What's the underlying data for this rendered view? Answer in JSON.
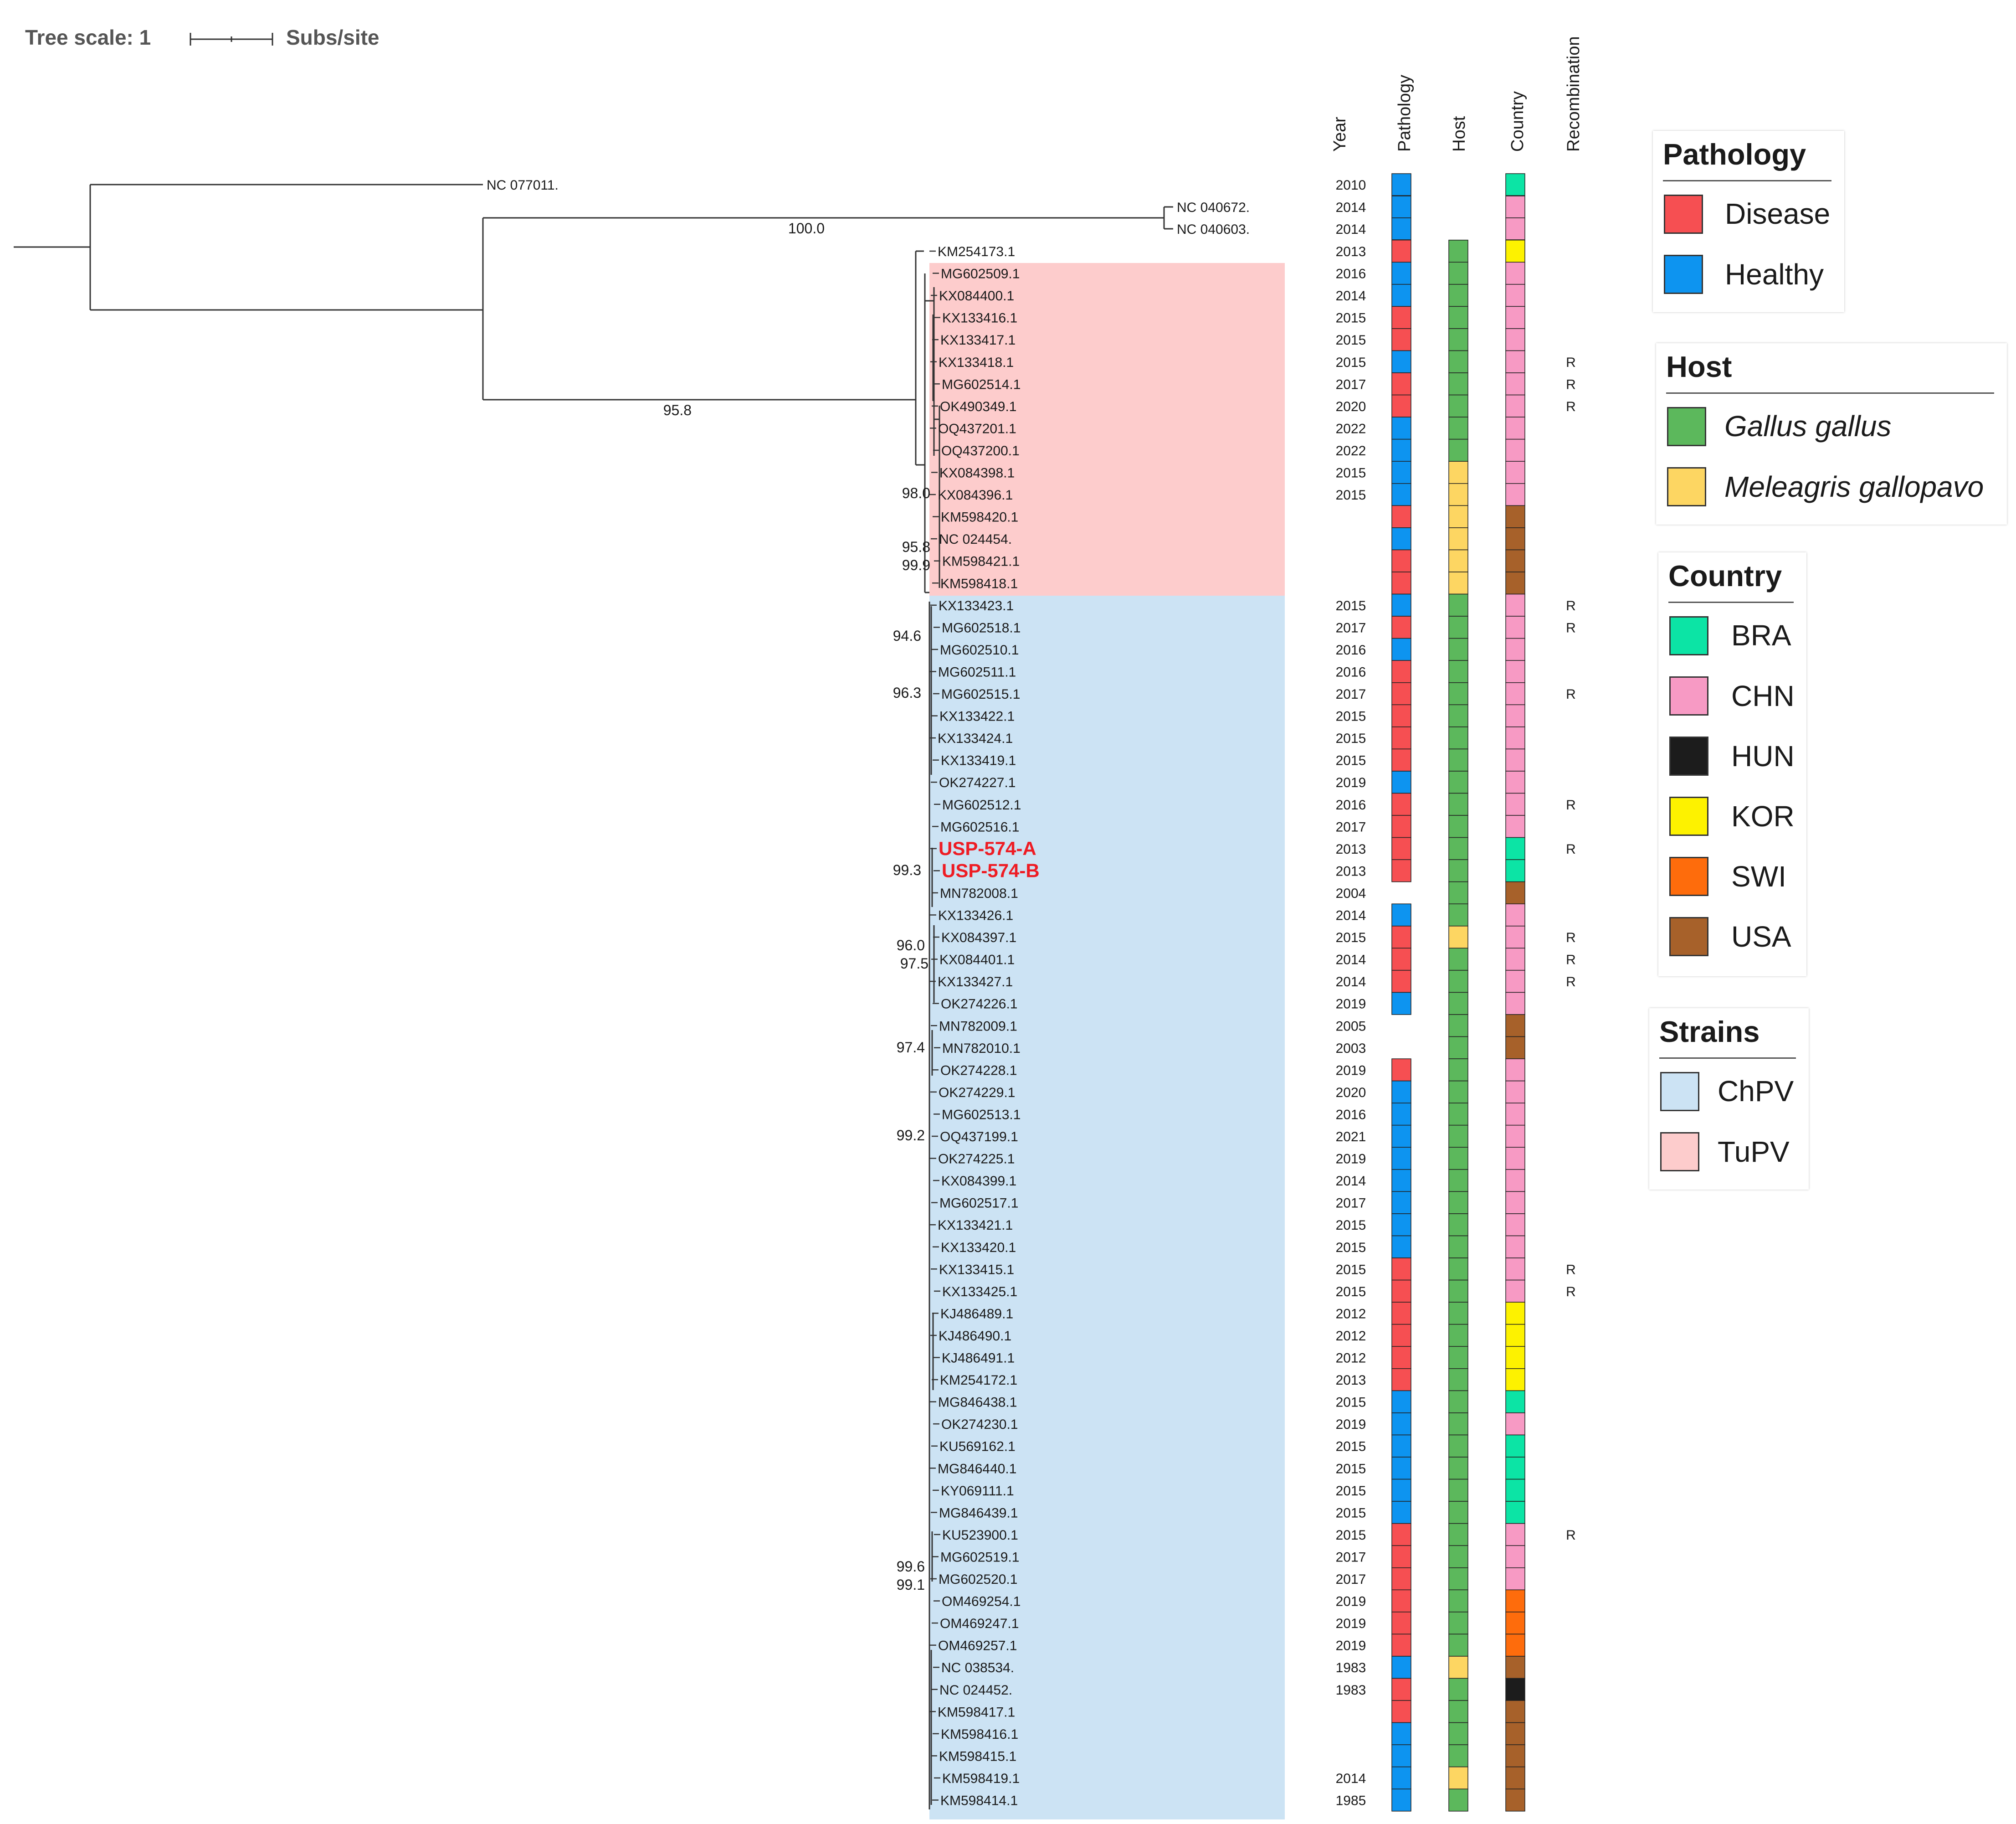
{
  "scale": {
    "title": "Tree scale: 1",
    "unit": "Subs/site"
  },
  "columns": {
    "year": "Year",
    "pathology": "Pathology",
    "host": "Host",
    "country": "Country",
    "recombination": "Recombination"
  },
  "colors": {
    "Disease": "#f64f52",
    "Healthy": "#0d94f0",
    "Gallus": "#5cb85c",
    "Meleagris": "#fdd662",
    "BRA": "#0ce4a5",
    "CHN": "#f79ac4",
    "HUN": "#1c1c1c",
    "KOR": "#fdf200",
    "SWI": "#fe6c0c",
    "USA": "#a7612a",
    "ChPV": "#cce3f4",
    "TuPV": "#fdcccc",
    "highlight": "#ee1c24"
  },
  "outgroup": [
    {
      "label": "NC 077011.",
      "year": "2010",
      "path": "H",
      "country": "BRA"
    },
    {
      "label": "NC 040672.",
      "year": "2014",
      "path": "H",
      "country": "CHN"
    },
    {
      "label": "NC 040603.",
      "year": "2014",
      "path": "H",
      "country": "CHN"
    }
  ],
  "rows": [
    {
      "label": "KM254173.1",
      "year": "2013",
      "path": "D",
      "host": "G",
      "country": "KOR",
      "rec": ""
    },
    {
      "label": "MG602509.1",
      "year": "2016",
      "path": "H",
      "host": "G",
      "country": "CHN",
      "rec": ""
    },
    {
      "label": "KX084400.1",
      "year": "2014",
      "path": "H",
      "host": "G",
      "country": "CHN",
      "rec": ""
    },
    {
      "label": "KX133416.1",
      "year": "2015",
      "path": "D",
      "host": "G",
      "country": "CHN",
      "rec": ""
    },
    {
      "label": "KX133417.1",
      "year": "2015",
      "path": "D",
      "host": "G",
      "country": "CHN",
      "rec": ""
    },
    {
      "label": "KX133418.1",
      "year": "2015",
      "path": "H",
      "host": "G",
      "country": "CHN",
      "rec": "R"
    },
    {
      "label": "MG602514.1",
      "year": "2017",
      "path": "D",
      "host": "G",
      "country": "CHN",
      "rec": "R"
    },
    {
      "label": "OK490349.1",
      "year": "2020",
      "path": "D",
      "host": "G",
      "country": "CHN",
      "rec": "R"
    },
    {
      "label": "OQ437201.1",
      "year": "2022",
      "path": "H",
      "host": "G",
      "country": "CHN",
      "rec": ""
    },
    {
      "label": "OQ437200.1",
      "year": "2022",
      "path": "H",
      "host": "G",
      "country": "CHN",
      "rec": ""
    },
    {
      "label": "KX084398.1",
      "year": "2015",
      "path": "H",
      "host": "M",
      "country": "CHN",
      "rec": ""
    },
    {
      "label": "KX084396.1",
      "year": "2015",
      "path": "H",
      "host": "M",
      "country": "CHN",
      "rec": ""
    },
    {
      "label": "KM598420.1",
      "year": "",
      "path": "D",
      "host": "M",
      "country": "USA",
      "rec": ""
    },
    {
      "label": "NC 024454.",
      "year": "",
      "path": "H",
      "host": "M",
      "country": "USA",
      "rec": ""
    },
    {
      "label": "KM598421.1",
      "year": "",
      "path": "D",
      "host": "M",
      "country": "USA",
      "rec": ""
    },
    {
      "label": "KM598418.1",
      "year": "",
      "path": "D",
      "host": "M",
      "country": "USA",
      "rec": ""
    },
    {
      "label": "KX133423.1",
      "year": "2015",
      "path": "H",
      "host": "G",
      "country": "CHN",
      "rec": "R"
    },
    {
      "label": "MG602518.1",
      "year": "2017",
      "path": "D",
      "host": "G",
      "country": "CHN",
      "rec": "R"
    },
    {
      "label": "MG602510.1",
      "year": "2016",
      "path": "H",
      "host": "G",
      "country": "CHN",
      "rec": ""
    },
    {
      "label": "MG602511.1",
      "year": "2016",
      "path": "D",
      "host": "G",
      "country": "CHN",
      "rec": ""
    },
    {
      "label": "MG602515.1",
      "year": "2017",
      "path": "D",
      "host": "G",
      "country": "CHN",
      "rec": "R"
    },
    {
      "label": "KX133422.1",
      "year": "2015",
      "path": "D",
      "host": "G",
      "country": "CHN",
      "rec": ""
    },
    {
      "label": "KX133424.1",
      "year": "2015",
      "path": "D",
      "host": "G",
      "country": "CHN",
      "rec": ""
    },
    {
      "label": "KX133419.1",
      "year": "2015",
      "path": "D",
      "host": "G",
      "country": "CHN",
      "rec": ""
    },
    {
      "label": "OK274227.1",
      "year": "2019",
      "path": "H",
      "host": "G",
      "country": "CHN",
      "rec": ""
    },
    {
      "label": "MG602512.1",
      "year": "2016",
      "path": "D",
      "host": "G",
      "country": "CHN",
      "rec": "R"
    },
    {
      "label": "MG602516.1",
      "year": "2017",
      "path": "D",
      "host": "G",
      "country": "CHN",
      "rec": ""
    },
    {
      "label": "USP-574-A",
      "year": "2013",
      "path": "D",
      "host": "G",
      "country": "BRA",
      "rec": "R",
      "highlight": true
    },
    {
      "label": "USP-574-B",
      "year": "2013",
      "path": "D",
      "host": "G",
      "country": "BRA",
      "rec": "",
      "highlight": true
    },
    {
      "label": "MN782008.1",
      "year": "2004",
      "path": "",
      "host": "G",
      "country": "USA",
      "rec": ""
    },
    {
      "label": "KX133426.1",
      "year": "2014",
      "path": "H",
      "host": "G",
      "country": "CHN",
      "rec": ""
    },
    {
      "label": "KX084397.1",
      "year": "2015",
      "path": "D",
      "host": "M",
      "country": "CHN",
      "rec": "R"
    },
    {
      "label": "KX084401.1",
      "year": "2014",
      "path": "D",
      "host": "G",
      "country": "CHN",
      "rec": "R"
    },
    {
      "label": "KX133427.1",
      "year": "2014",
      "path": "D",
      "host": "G",
      "country": "CHN",
      "rec": "R"
    },
    {
      "label": "OK274226.1",
      "year": "2019",
      "path": "H",
      "host": "G",
      "country": "CHN",
      "rec": ""
    },
    {
      "label": "MN782009.1",
      "year": "2005",
      "path": "",
      "host": "G",
      "country": "USA",
      "rec": ""
    },
    {
      "label": "MN782010.1",
      "year": "2003",
      "path": "",
      "host": "G",
      "country": "USA",
      "rec": ""
    },
    {
      "label": "OK274228.1",
      "year": "2019",
      "path": "D",
      "host": "G",
      "country": "CHN",
      "rec": ""
    },
    {
      "label": "OK274229.1",
      "year": "2020",
      "path": "H",
      "host": "G",
      "country": "CHN",
      "rec": ""
    },
    {
      "label": "MG602513.1",
      "year": "2016",
      "path": "H",
      "host": "G",
      "country": "CHN",
      "rec": ""
    },
    {
      "label": "OQ437199.1",
      "year": "2021",
      "path": "H",
      "host": "G",
      "country": "CHN",
      "rec": ""
    },
    {
      "label": "OK274225.1",
      "year": "2019",
      "path": "H",
      "host": "G",
      "country": "CHN",
      "rec": ""
    },
    {
      "label": "KX084399.1",
      "year": "2014",
      "path": "H",
      "host": "G",
      "country": "CHN",
      "rec": ""
    },
    {
      "label": "MG602517.1",
      "year": "2017",
      "path": "H",
      "host": "G",
      "country": "CHN",
      "rec": ""
    },
    {
      "label": "KX133421.1",
      "year": "2015",
      "path": "H",
      "host": "G",
      "country": "CHN",
      "rec": ""
    },
    {
      "label": "KX133420.1",
      "year": "2015",
      "path": "H",
      "host": "G",
      "country": "CHN",
      "rec": ""
    },
    {
      "label": "KX133415.1",
      "year": "2015",
      "path": "D",
      "host": "G",
      "country": "CHN",
      "rec": "R"
    },
    {
      "label": "KX133425.1",
      "year": "2015",
      "path": "D",
      "host": "G",
      "country": "CHN",
      "rec": "R"
    },
    {
      "label": "KJ486489.1",
      "year": "2012",
      "path": "D",
      "host": "G",
      "country": "KOR",
      "rec": ""
    },
    {
      "label": "KJ486490.1",
      "year": "2012",
      "path": "D",
      "host": "G",
      "country": "KOR",
      "rec": ""
    },
    {
      "label": "KJ486491.1",
      "year": "2012",
      "path": "D",
      "host": "G",
      "country": "KOR",
      "rec": ""
    },
    {
      "label": "KM254172.1",
      "year": "2013",
      "path": "D",
      "host": "G",
      "country": "KOR",
      "rec": ""
    },
    {
      "label": "MG846438.1",
      "year": "2015",
      "path": "H",
      "host": "G",
      "country": "BRA",
      "rec": ""
    },
    {
      "label": "OK274230.1",
      "year": "2019",
      "path": "H",
      "host": "G",
      "country": "CHN",
      "rec": ""
    },
    {
      "label": "KU569162.1",
      "year": "2015",
      "path": "H",
      "host": "G",
      "country": "BRA",
      "rec": ""
    },
    {
      "label": "MG846440.1",
      "year": "2015",
      "path": "H",
      "host": "G",
      "country": "BRA",
      "rec": ""
    },
    {
      "label": "KY069111.1",
      "year": "2015",
      "path": "H",
      "host": "G",
      "country": "BRA",
      "rec": ""
    },
    {
      "label": "MG846439.1",
      "year": "2015",
      "path": "H",
      "host": "G",
      "country": "BRA",
      "rec": ""
    },
    {
      "label": "KU523900.1",
      "year": "2015",
      "path": "D",
      "host": "G",
      "country": "CHN",
      "rec": "R"
    },
    {
      "label": "MG602519.1",
      "year": "2017",
      "path": "D",
      "host": "G",
      "country": "CHN",
      "rec": ""
    },
    {
      "label": "MG602520.1",
      "year": "2017",
      "path": "D",
      "host": "G",
      "country": "CHN",
      "rec": ""
    },
    {
      "label": "OM469254.1",
      "year": "2019",
      "path": "D",
      "host": "G",
      "country": "SWI",
      "rec": ""
    },
    {
      "label": "OM469247.1",
      "year": "2019",
      "path": "D",
      "host": "G",
      "country": "SWI",
      "rec": ""
    },
    {
      "label": "OM469257.1",
      "year": "2019",
      "path": "D",
      "host": "G",
      "country": "SWI",
      "rec": ""
    },
    {
      "label": "NC 038534.",
      "year": "1983",
      "path": "H",
      "host": "M",
      "country": "USA",
      "rec": ""
    },
    {
      "label": "NC 024452.",
      "year": "1983",
      "path": "D",
      "host": "G",
      "country": "HUN",
      "rec": ""
    },
    {
      "label": "KM598417.1",
      "year": "",
      "path": "D",
      "host": "G",
      "country": "USA",
      "rec": ""
    },
    {
      "label": "KM598416.1",
      "year": "",
      "path": "H",
      "host": "G",
      "country": "USA",
      "rec": ""
    },
    {
      "label": "KM598415.1",
      "year": "",
      "path": "H",
      "host": "G",
      "country": "USA",
      "rec": ""
    },
    {
      "label": "KM598419.1",
      "year": "2014",
      "path": "H",
      "host": "M",
      "country": "USA",
      "rec": ""
    },
    {
      "label": "KM598414.1",
      "year": "1985",
      "path": "H",
      "host": "G",
      "country": "USA",
      "rec": ""
    }
  ],
  "bootstrap": [
    "100.0",
    "95.8",
    "98.0",
    "95.8",
    "99.9",
    "94.6",
    "96.3",
    "99.3",
    "96.0",
    "97.5",
    "97.4",
    "99.2",
    "99.6",
    "99.1"
  ],
  "legends": {
    "pathology": {
      "title": "Pathology",
      "items": [
        "Disease",
        "Healthy"
      ]
    },
    "host": {
      "title": "Host",
      "items": [
        "Gallus gallus",
        "Meleagris gallopavo"
      ]
    },
    "country": {
      "title": "Country",
      "items": [
        "BRA",
        "CHN",
        "HUN",
        "KOR",
        "SWI",
        "USA"
      ]
    },
    "strains": {
      "title": "Strains",
      "items": [
        "ChPV",
        "TuPV"
      ]
    }
  }
}
